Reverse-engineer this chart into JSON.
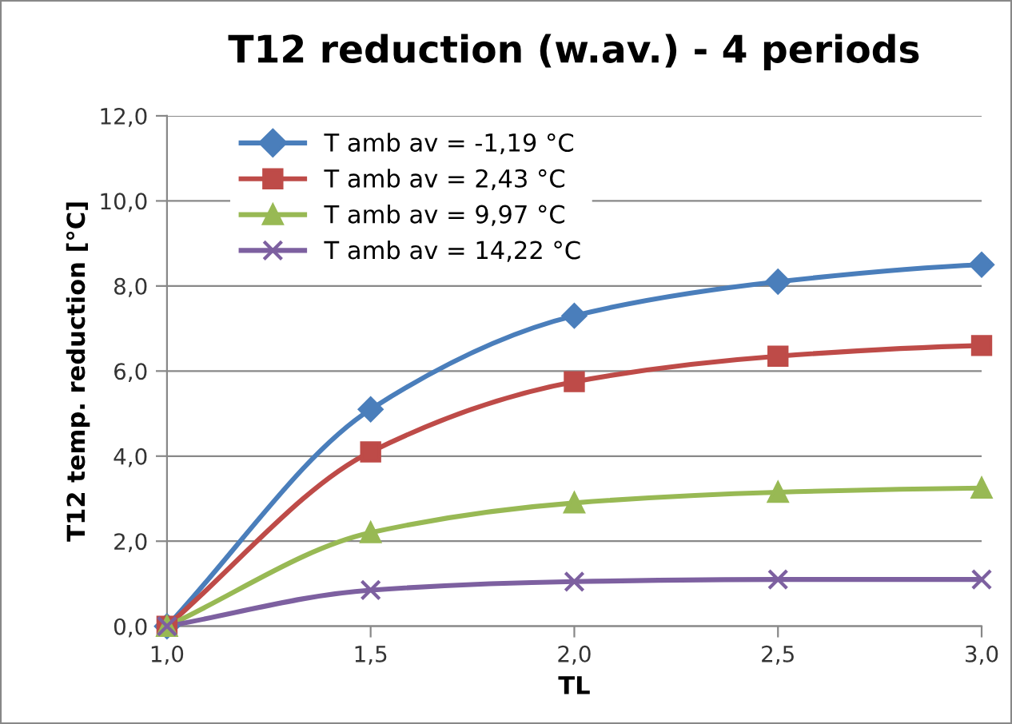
{
  "chart_data": {
    "type": "line",
    "title": "T12 reduction (w.av.) - 4 periods",
    "xlabel": "TL",
    "ylabel": "T12 temp. reduction [°C]",
    "x": [
      1.0,
      1.5,
      2.0,
      2.5,
      3.0
    ],
    "xlim": [
      1.0,
      3.0
    ],
    "xticks": [
      {
        "value": 1.0,
        "label": "1,0"
      },
      {
        "value": 1.5,
        "label": "1,5"
      },
      {
        "value": 2.0,
        "label": "2,0"
      },
      {
        "value": 2.5,
        "label": "2,5"
      },
      {
        "value": 3.0,
        "label": "3,0"
      }
    ],
    "ylim": [
      0,
      12
    ],
    "yticks": [
      {
        "value": 0,
        "label": "0,0"
      },
      {
        "value": 2,
        "label": "2,0"
      },
      {
        "value": 4,
        "label": "4,0"
      },
      {
        "value": 6,
        "label": "6,0"
      },
      {
        "value": 8,
        "label": "8,0"
      },
      {
        "value": 10,
        "label": "10,0"
      },
      {
        "value": 12,
        "label": "12,0"
      }
    ],
    "grid": "y",
    "legend": "top left",
    "line_style": "solid",
    "series": [
      {
        "name": "T amb av = -1,19 °C",
        "color": "#4a7ebb",
        "marker": "diamond",
        "values": [
          0,
          5.1,
          7.3,
          8.1,
          8.5
        ]
      },
      {
        "name": "T amb av = 2,43 °C",
        "color": "#be4b48",
        "marker": "square",
        "values": [
          0,
          4.1,
          5.75,
          6.35,
          6.6
        ]
      },
      {
        "name": "T amb av = 9,97 °C",
        "color": "#98b954",
        "marker": "triangle",
        "values": [
          0,
          2.2,
          2.9,
          3.15,
          3.25
        ]
      },
      {
        "name": "T amb av = 14,22 °C",
        "color": "#7d60a0",
        "marker": "cross",
        "values": [
          0,
          0.85,
          1.05,
          1.1,
          1.1
        ]
      }
    ]
  }
}
